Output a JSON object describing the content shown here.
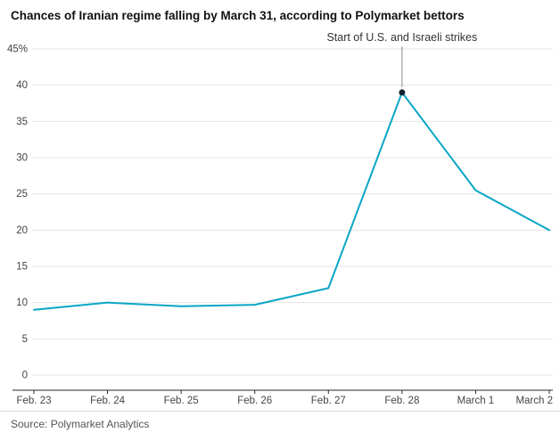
{
  "title": "Chances of Iranian regime falling by March 31, according to Polymarket bettors",
  "source_note": "Source: Polymarket Analytics",
  "chart_data": {
    "type": "line",
    "title": "Chances of Iranian regime falling by March 31, according to Polymarket bettors",
    "categories": [
      "Feb. 23",
      "Feb. 24",
      "Feb. 25",
      "Feb. 26",
      "Feb. 27",
      "Feb. 28",
      "March 1",
      "March 2"
    ],
    "series": [
      {
        "name": "Chance of Iranian regime falling by March 31 (%)",
        "values": [
          9,
          10,
          9.5,
          9.7,
          12,
          39,
          25.5,
          20
        ]
      }
    ],
    "xlabel": "",
    "ylabel": "",
    "ylim": [
      0,
      45
    ],
    "yticks": [
      0,
      5,
      10,
      15,
      20,
      25,
      30,
      35,
      40,
      45
    ],
    "ytick_top_suffix": "%",
    "grid": true,
    "legend": "none",
    "annotation": {
      "text": "Start of U.S. and Israeli strikes",
      "category": "Feb. 28",
      "value": 39
    },
    "colors": {
      "line": "#09a6c6",
      "marker": "#13222e",
      "grid": "#e4e4e4",
      "axis": "#20282f",
      "tick_label": "#444444",
      "annotation_text": "#333333",
      "annotation_line": "#8a8a8a"
    }
  }
}
